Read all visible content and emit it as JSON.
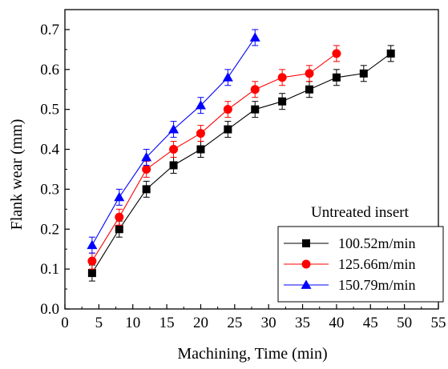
{
  "chart_data": {
    "type": "line",
    "xlabel": "Machining, Time (min)",
    "ylabel": "Flank wear (mm)",
    "xlim": [
      0,
      55
    ],
    "ylim": [
      0.0,
      0.75
    ],
    "xticks": [
      0,
      5,
      10,
      15,
      20,
      25,
      30,
      35,
      40,
      45,
      50,
      55
    ],
    "yticks": [
      0.0,
      0.1,
      0.2,
      0.3,
      0.4,
      0.5,
      0.6,
      0.7
    ],
    "xtick_labels": [
      "0",
      "5",
      "10",
      "15",
      "20",
      "25",
      "30",
      "35",
      "40",
      "45",
      "50",
      "55"
    ],
    "ytick_labels": [
      "0.0",
      "0.1",
      "0.2",
      "0.3",
      "0.4",
      "0.5",
      "0.6",
      "0.7"
    ],
    "grid": false,
    "error_bars": true,
    "legend_title": "Untreated insert",
    "legend_position": "bottom-right",
    "series": [
      {
        "name": "100.52m/min",
        "color": "#000000",
        "marker": "square",
        "x": [
          4,
          8,
          12,
          16,
          20,
          24,
          28,
          32,
          36,
          40,
          44,
          48
        ],
        "y": [
          0.09,
          0.2,
          0.3,
          0.36,
          0.4,
          0.45,
          0.5,
          0.52,
          0.55,
          0.58,
          0.59,
          0.64
        ],
        "err": [
          0.02,
          0.02,
          0.02,
          0.02,
          0.02,
          0.02,
          0.02,
          0.02,
          0.02,
          0.02,
          0.02,
          0.02
        ]
      },
      {
        "name": "125.66m/min",
        "color": "#ff0000",
        "marker": "circle",
        "x": [
          4,
          8,
          12,
          16,
          20,
          24,
          28,
          32,
          36,
          40
        ],
        "y": [
          0.12,
          0.23,
          0.35,
          0.4,
          0.44,
          0.5,
          0.55,
          0.58,
          0.59,
          0.64
        ],
        "err": [
          0.02,
          0.02,
          0.02,
          0.02,
          0.02,
          0.02,
          0.02,
          0.02,
          0.02,
          0.02
        ]
      },
      {
        "name": "150.79m/min",
        "color": "#0000ff",
        "marker": "triangle",
        "x": [
          4,
          8,
          12,
          16,
          20,
          24,
          28
        ],
        "y": [
          0.16,
          0.28,
          0.38,
          0.45,
          0.51,
          0.58,
          0.68
        ],
        "err": [
          0.02,
          0.02,
          0.02,
          0.02,
          0.02,
          0.02,
          0.02
        ]
      }
    ]
  }
}
